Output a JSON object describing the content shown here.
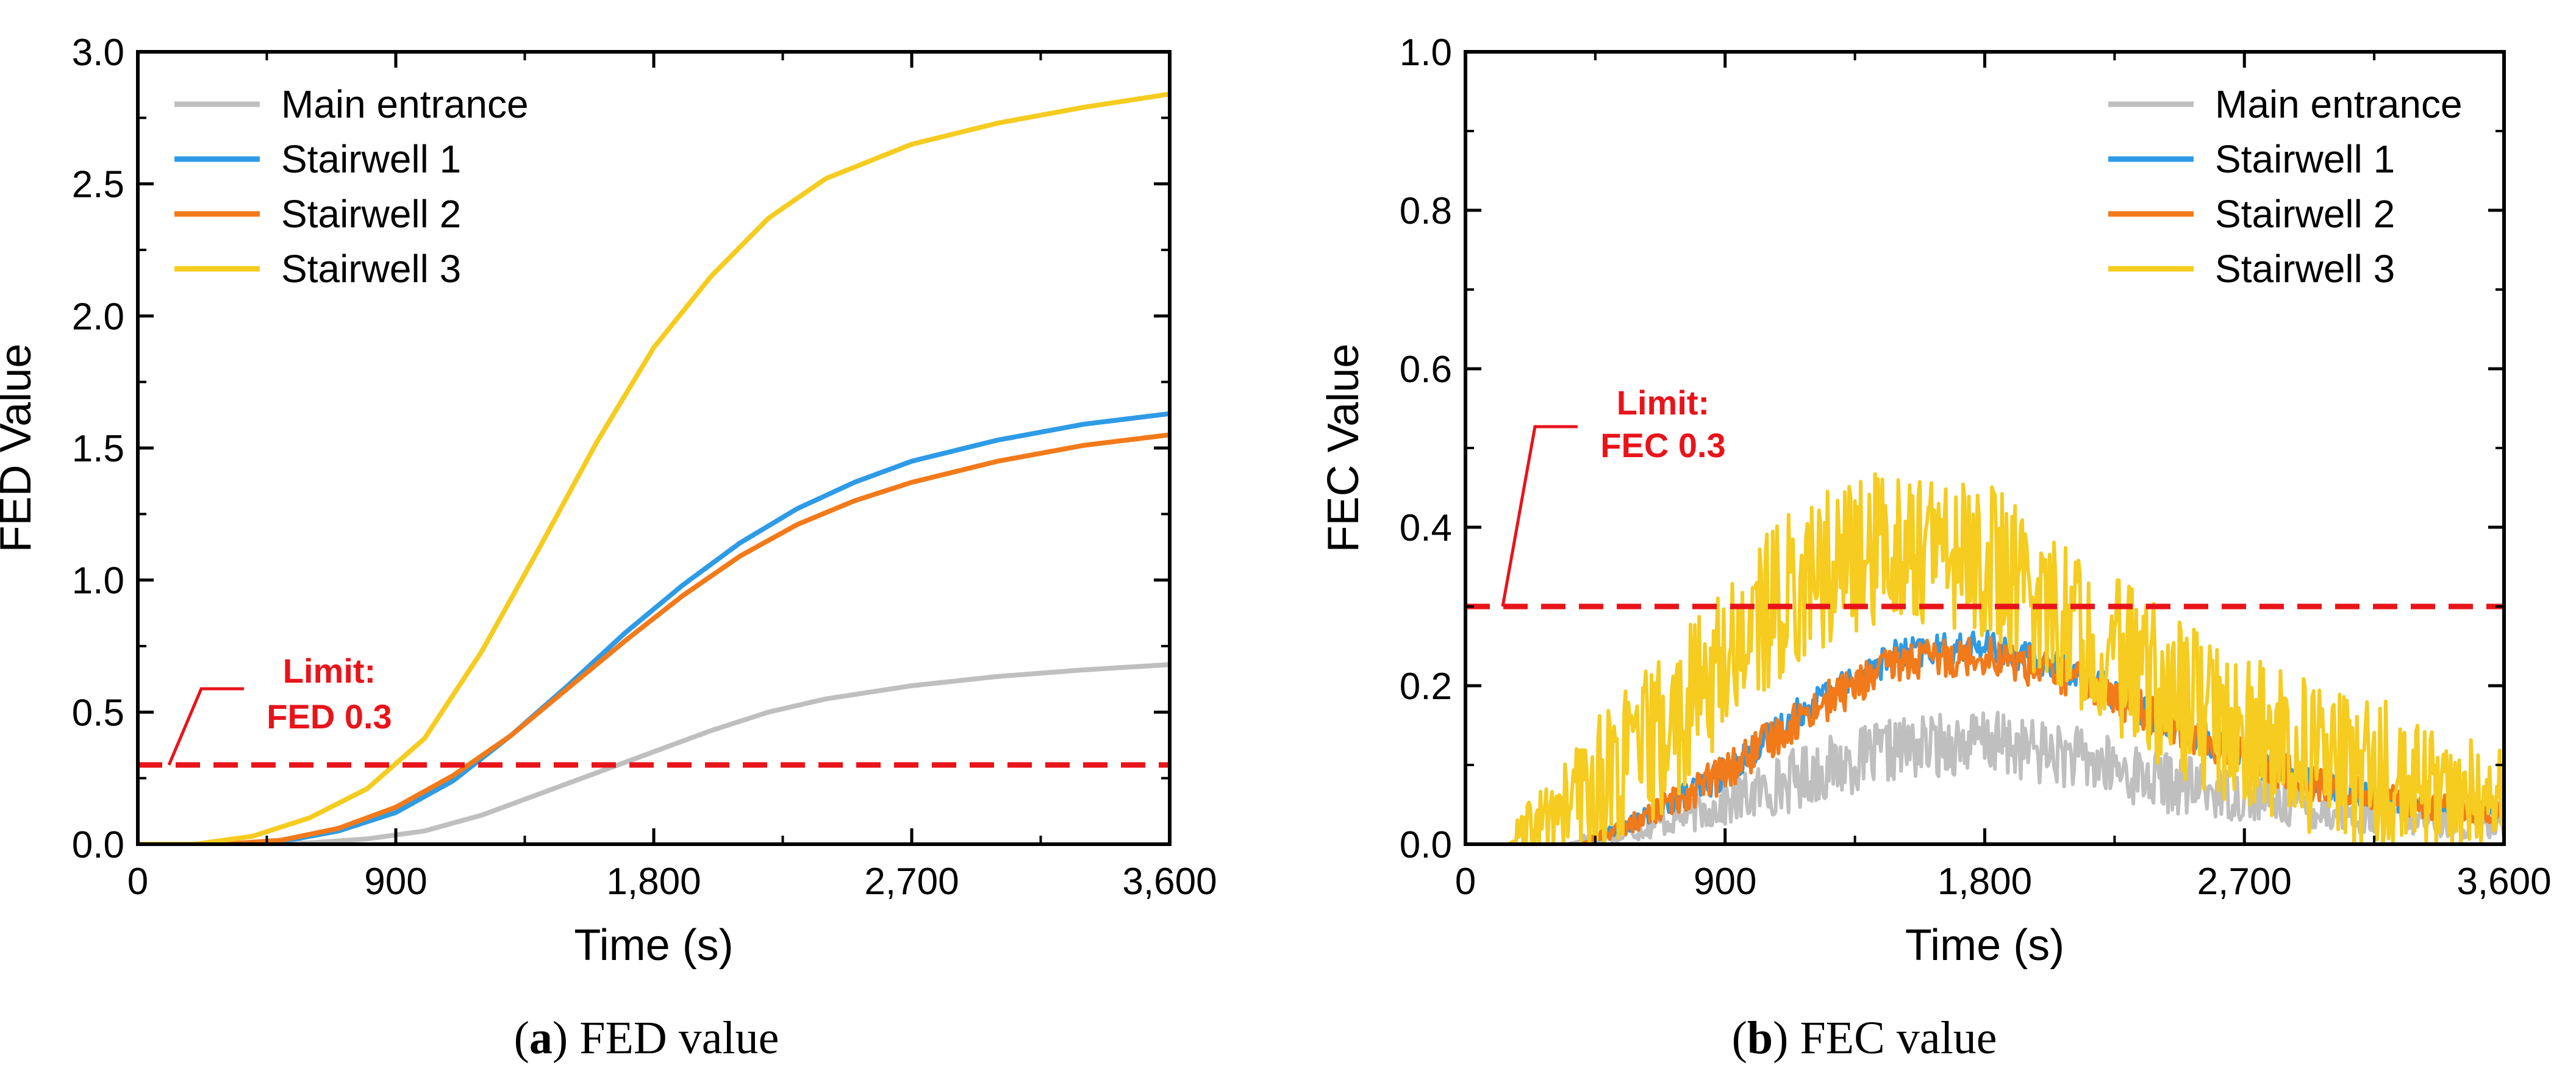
{
  "colors": {
    "main_entrance": "#bfbfbf",
    "stairwell_1": "#2e9be6",
    "stairwell_2": "#f27a1a",
    "stairwell_3": "#f5cc1f",
    "limit": "#e8141a"
  },
  "chart_data": [
    {
      "type": "line",
      "panel_letter": "a",
      "caption": "FED value",
      "xlabel": "Time (s)",
      "ylabel": "FED Value",
      "xlim": [
        0,
        3600
      ],
      "ylim": [
        0,
        3.0
      ],
      "xticks": [
        0,
        900,
        1800,
        2700,
        3600
      ],
      "xtick_labels": [
        "0",
        "900",
        "1,800",
        "2,700",
        "3,600"
      ],
      "yticks": [
        0,
        0.5,
        1.0,
        1.5,
        2.0,
        2.5,
        3.0
      ],
      "ytick_labels": [
        "0.0",
        "0.5",
        "1.0",
        "1.5",
        "2.0",
        "2.5",
        "3.0"
      ],
      "legend": [
        "Main entrance",
        "Stairwell 1",
        "Stairwell 2",
        "Stairwell 3"
      ],
      "limit": {
        "value": 0.3,
        "label_line1": "Limit:",
        "label_line2": "FED 0.3"
      },
      "series": [
        {
          "name": "Main entrance",
          "x": [
            0,
            300,
            600,
            800,
            1000,
            1200,
            1400,
            1600,
            1800,
            2000,
            2200,
            2400,
            2700,
            3000,
            3300,
            3600
          ],
          "values": [
            0,
            0,
            0.005,
            0.02,
            0.05,
            0.11,
            0.19,
            0.27,
            0.35,
            0.43,
            0.5,
            0.55,
            0.6,
            0.635,
            0.66,
            0.68
          ]
        },
        {
          "name": "Stairwell 1",
          "x": [
            0,
            300,
            500,
            700,
            900,
            1100,
            1300,
            1500,
            1700,
            1900,
            2100,
            2300,
            2500,
            2700,
            3000,
            3300,
            3600
          ],
          "values": [
            0,
            0,
            0.01,
            0.05,
            0.12,
            0.24,
            0.41,
            0.6,
            0.8,
            0.98,
            1.14,
            1.27,
            1.37,
            1.45,
            1.53,
            1.59,
            1.63
          ]
        },
        {
          "name": "Stairwell 2",
          "x": [
            0,
            300,
            500,
            700,
            900,
            1100,
            1300,
            1500,
            1700,
            1900,
            2100,
            2300,
            2500,
            2700,
            3000,
            3300,
            3600
          ],
          "values": [
            0,
            0,
            0.015,
            0.06,
            0.14,
            0.26,
            0.41,
            0.59,
            0.77,
            0.94,
            1.09,
            1.21,
            1.3,
            1.37,
            1.45,
            1.51,
            1.55
          ]
        },
        {
          "name": "Stairwell 3",
          "x": [
            0,
            200,
            400,
            600,
            800,
            1000,
            1200,
            1400,
            1600,
            1800,
            2000,
            2200,
            2400,
            2700,
            3000,
            3300,
            3600
          ],
          "values": [
            0,
            0,
            0.03,
            0.1,
            0.21,
            0.4,
            0.73,
            1.12,
            1.52,
            1.88,
            2.15,
            2.37,
            2.52,
            2.65,
            2.73,
            2.79,
            2.84
          ]
        }
      ]
    },
    {
      "type": "line",
      "panel_letter": "b",
      "caption": "FEC value",
      "xlabel": "Time (s)",
      "ylabel": "FEC Value",
      "xlim": [
        0,
        3600
      ],
      "ylim": [
        0,
        1.0
      ],
      "xticks": [
        0,
        900,
        1800,
        2700,
        3600
      ],
      "xtick_labels": [
        "0",
        "900",
        "1,800",
        "2,700",
        "3,600"
      ],
      "yticks": [
        0,
        0.2,
        0.4,
        0.6,
        0.8,
        1.0
      ],
      "ytick_labels": [
        "0.0",
        "0.2",
        "0.4",
        "0.6",
        "0.8",
        "1.0"
      ],
      "legend": [
        "Main entrance",
        "Stairwell 1",
        "Stairwell 2",
        "Stairwell 3"
      ],
      "limit": {
        "value": 0.3,
        "label_line1": "Limit:",
        "label_line2": "FEC 0.3"
      },
      "series": [
        {
          "name": "Main entrance",
          "noise": 0.04,
          "x": [
            0,
            350,
            600,
            900,
            1200,
            1500,
            1800,
            2100,
            2400,
            2700,
            3000,
            3300,
            3600
          ],
          "values": [
            0,
            0,
            0.02,
            0.05,
            0.09,
            0.12,
            0.13,
            0.11,
            0.08,
            0.06,
            0.04,
            0.03,
            0.02
          ]
        },
        {
          "name": "Stairwell 1",
          "noise": 0.02,
          "x": [
            0,
            400,
            600,
            900,
            1200,
            1500,
            1800,
            2100,
            2400,
            2700,
            3000,
            3300,
            3600
          ],
          "values": [
            0,
            0,
            0.03,
            0.09,
            0.18,
            0.24,
            0.25,
            0.22,
            0.16,
            0.11,
            0.07,
            0.05,
            0.04
          ]
        },
        {
          "name": "Stairwell 2",
          "noise": 0.025,
          "x": [
            0,
            400,
            600,
            900,
            1200,
            1500,
            1800,
            2100,
            2400,
            2700,
            3000,
            3300,
            3600
          ],
          "values": [
            0,
            0,
            0.03,
            0.09,
            0.17,
            0.23,
            0.24,
            0.21,
            0.16,
            0.11,
            0.07,
            0.05,
            0.04
          ]
        },
        {
          "name": "Stairwell 3",
          "noise": 0.1,
          "x": [
            0,
            150,
            400,
            700,
            1000,
            1200,
            1500,
            1800,
            2100,
            2400,
            2700,
            3000,
            3300,
            3600
          ],
          "values": [
            0,
            0,
            0.06,
            0.14,
            0.28,
            0.34,
            0.38,
            0.36,
            0.28,
            0.2,
            0.14,
            0.1,
            0.07,
            0.05
          ]
        }
      ]
    }
  ]
}
